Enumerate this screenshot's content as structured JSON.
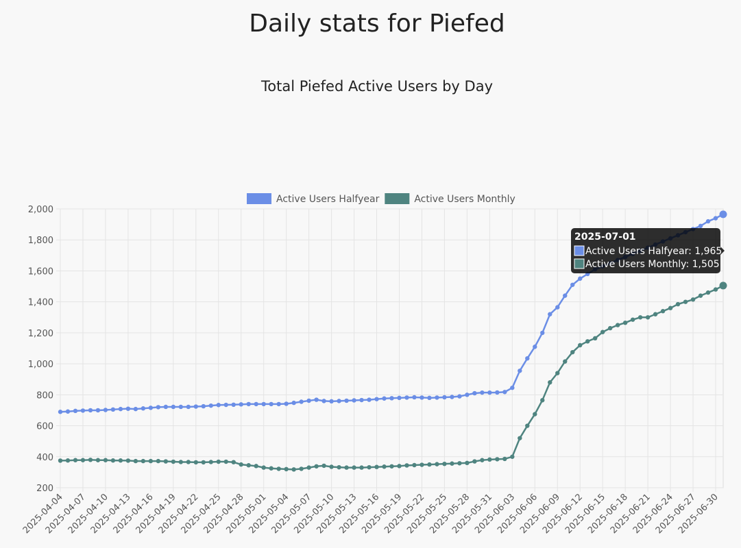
{
  "page_title": "Daily stats for Piefed",
  "chart_data": {
    "type": "line",
    "title": "Total Piefed Active Users by Day",
    "categories": [
      "2025-04-04",
      null,
      null,
      "2025-04-07",
      null,
      null,
      "2025-04-10",
      null,
      null,
      "2025-04-13",
      null,
      null,
      "2025-04-16",
      null,
      null,
      "2025-04-19",
      null,
      null,
      "2025-04-22",
      null,
      null,
      "2025-04-25",
      null,
      null,
      "2025-04-28",
      null,
      null,
      "2025-05-01",
      null,
      null,
      "2025-05-04",
      null,
      null,
      "2025-05-07",
      null,
      null,
      "2025-05-10",
      null,
      null,
      "2025-05-13",
      null,
      null,
      "2025-05-16",
      null,
      null,
      "2025-05-19",
      null,
      null,
      "2025-05-22",
      null,
      null,
      "2025-05-25",
      null,
      null,
      "2025-05-28",
      null,
      null,
      "2025-05-31",
      null,
      null,
      "2025-06-03",
      null,
      null,
      "2025-06-06",
      null,
      null,
      "2025-06-09",
      null,
      null,
      "2025-06-12",
      null,
      null,
      "2025-06-15",
      null,
      null,
      "2025-06-18",
      null,
      null,
      "2025-06-21",
      null,
      null,
      "2025-06-24",
      null,
      null,
      "2025-06-27",
      null,
      null,
      "2025-06-30",
      null
    ],
    "series": [
      {
        "name": "Active Users Halfyear",
        "color": "#6b8ee6",
        "values": [
          690,
          692,
          696,
          698,
          700,
          700,
          702,
          705,
          708,
          710,
          708,
          712,
          716,
          720,
          722,
          722,
          722,
          722,
          724,
          726,
          730,
          734,
          735,
          736,
          738,
          740,
          740,
          740,
          740,
          740,
          742,
          748,
          755,
          762,
          768,
          760,
          758,
          760,
          762,
          764,
          766,
          768,
          772,
          776,
          778,
          780,
          782,
          784,
          782,
          780,
          782,
          784,
          786,
          790,
          800,
          810,
          814,
          814,
          815,
          818,
          845,
          955,
          1035,
          1110,
          1200,
          1320,
          1365,
          1440,
          1510,
          1550,
          1580,
          1610,
          1630,
          1650,
          1670,
          1690,
          1710,
          1730,
          1750,
          1770,
          1790,
          1810,
          1830,
          1850,
          1870,
          1890,
          1920,
          1940,
          1965
        ]
      },
      {
        "name": "Active Users Monthly",
        "color": "#4f8480",
        "values": [
          375,
          376,
          378,
          378,
          380,
          378,
          378,
          376,
          376,
          375,
          372,
          372,
          372,
          372,
          370,
          368,
          366,
          366,
          364,
          364,
          366,
          368,
          368,
          365,
          350,
          345,
          340,
          330,
          325,
          322,
          320,
          318,
          322,
          330,
          338,
          342,
          335,
          332,
          330,
          330,
          330,
          332,
          334,
          336,
          338,
          340,
          344,
          346,
          348,
          350,
          352,
          354,
          356,
          358,
          360,
          370,
          378,
          382,
          384,
          386,
          400,
          520,
          600,
          675,
          765,
          880,
          940,
          1015,
          1075,
          1120,
          1145,
          1165,
          1205,
          1230,
          1250,
          1265,
          1285,
          1300,
          1300,
          1320,
          1340,
          1360,
          1385,
          1400,
          1415,
          1440,
          1460,
          1480,
          1505
        ]
      }
    ],
    "ylim": [
      200,
      2000
    ],
    "yticks": [
      200,
      400,
      600,
      800,
      {
        "value": 1000,
        "label": "1,000"
      },
      {
        "value": 1200,
        "label": "1,200"
      },
      {
        "value": 1400,
        "label": "1,400"
      },
      {
        "value": 1600,
        "label": "1,600"
      },
      {
        "value": 1800,
        "label": "1,800"
      },
      {
        "value": 2000,
        "label": "2,000"
      }
    ],
    "grid": true,
    "legend": "top",
    "tooltip": {
      "title": "2025-07-01",
      "items": [
        "Active Users Halfyear: 1,965",
        "Active Users Monthly: 1,505"
      ]
    }
  }
}
